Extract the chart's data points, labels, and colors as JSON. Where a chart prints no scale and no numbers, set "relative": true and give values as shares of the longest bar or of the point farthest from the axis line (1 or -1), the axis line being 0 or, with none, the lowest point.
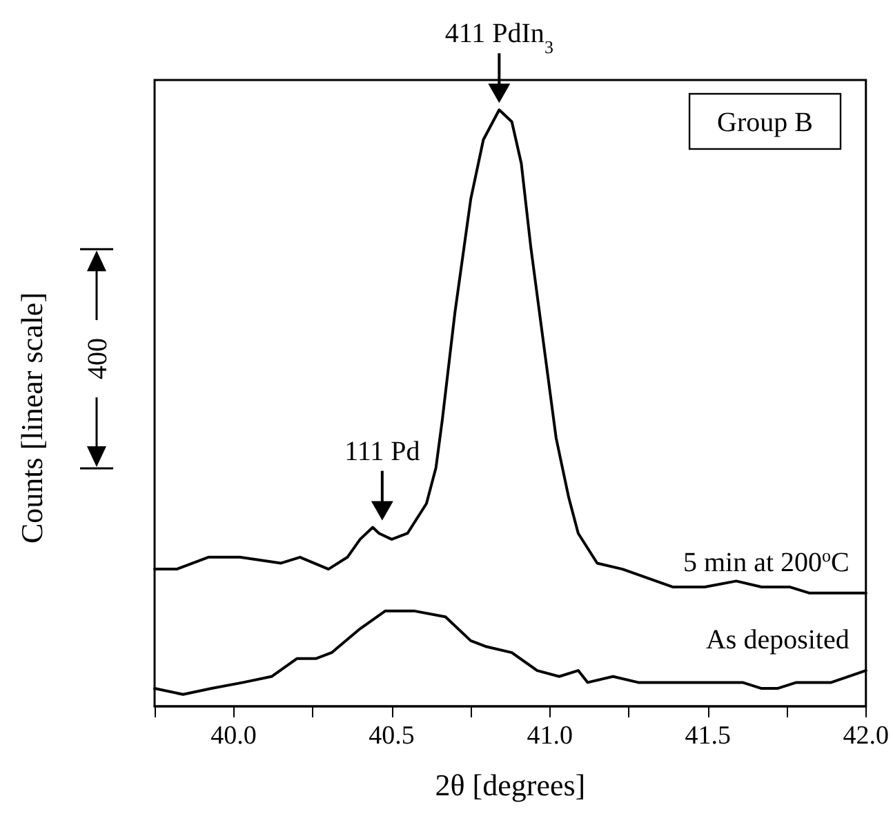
{
  "chart_data": {
    "type": "line",
    "relative": true,
    "xlabel": "2θ [degrees]",
    "ylabel": "Counts [linear scale]",
    "xlim": [
      39.75,
      42.0
    ],
    "xticks": [
      {
        "value": 39.75,
        "label": null
      },
      {
        "value": 40.0,
        "label": "40.0"
      },
      {
        "value": 40.25,
        "label": null
      },
      {
        "value": 40.5,
        "label": "40.5"
      },
      {
        "value": 40.75,
        "label": null
      },
      {
        "value": 41.0,
        "label": "41.0"
      },
      {
        "value": 41.25,
        "label": null
      },
      {
        "value": 41.5,
        "label": "41.5"
      },
      {
        "value": 41.75,
        "label": null
      },
      {
        "value": 42.0,
        "label": "42.0"
      }
    ],
    "marker": "none",
    "legend": false,
    "series": [
      {
        "name": "5 min at 200$^{o}$C",
        "color": "#000000",
        "x": [
          39.75,
          39.82,
          39.92,
          40.02,
          40.15,
          40.21,
          40.3,
          40.36,
          40.4,
          40.44,
          40.46,
          40.5,
          40.55,
          40.61,
          40.64,
          40.66,
          40.7,
          40.75,
          40.79,
          40.84,
          40.88,
          40.91,
          40.94,
          40.98,
          41.02,
          41.06,
          41.09,
          41.15,
          41.23,
          41.39,
          41.49,
          41.59,
          41.67,
          41.76,
          41.82,
          41.89,
          42.0
        ],
        "values": [
          0.23,
          0.23,
          0.25,
          0.25,
          0.24,
          0.25,
          0.23,
          0.25,
          0.28,
          0.3,
          0.29,
          0.28,
          0.29,
          0.34,
          0.4,
          0.48,
          0.66,
          0.85,
          0.95,
          1.0,
          0.98,
          0.91,
          0.77,
          0.61,
          0.45,
          0.35,
          0.29,
          0.24,
          0.23,
          0.2,
          0.2,
          0.21,
          0.2,
          0.2,
          0.19,
          0.19,
          0.19
        ]
      },
      {
        "name": "As deposited",
        "color": "#000000",
        "x": [
          39.75,
          39.84,
          39.93,
          40.03,
          40.12,
          40.2,
          40.26,
          40.31,
          40.4,
          40.48,
          40.57,
          40.67,
          40.75,
          40.8,
          40.88,
          40.96,
          41.03,
          41.09,
          41.12,
          41.2,
          41.28,
          41.39,
          41.52,
          41.61,
          41.67,
          41.72,
          41.78,
          41.89,
          42.0
        ],
        "values": [
          0.03,
          0.02,
          0.03,
          0.04,
          0.05,
          0.08,
          0.08,
          0.09,
          0.13,
          0.16,
          0.16,
          0.15,
          0.11,
          0.1,
          0.09,
          0.06,
          0.05,
          0.06,
          0.04,
          0.05,
          0.04,
          0.04,
          0.04,
          0.04,
          0.03,
          0.03,
          0.04,
          0.04,
          0.06
        ]
      }
    ],
    "annotations": [
      {
        "text": "411 PdIn$_{3}$",
        "x": 40.84,
        "y": 1.0
      },
      {
        "text": "111 Pd",
        "x": 40.47,
        "y": 0.3
      },
      "Group B",
      "400"
    ]
  }
}
